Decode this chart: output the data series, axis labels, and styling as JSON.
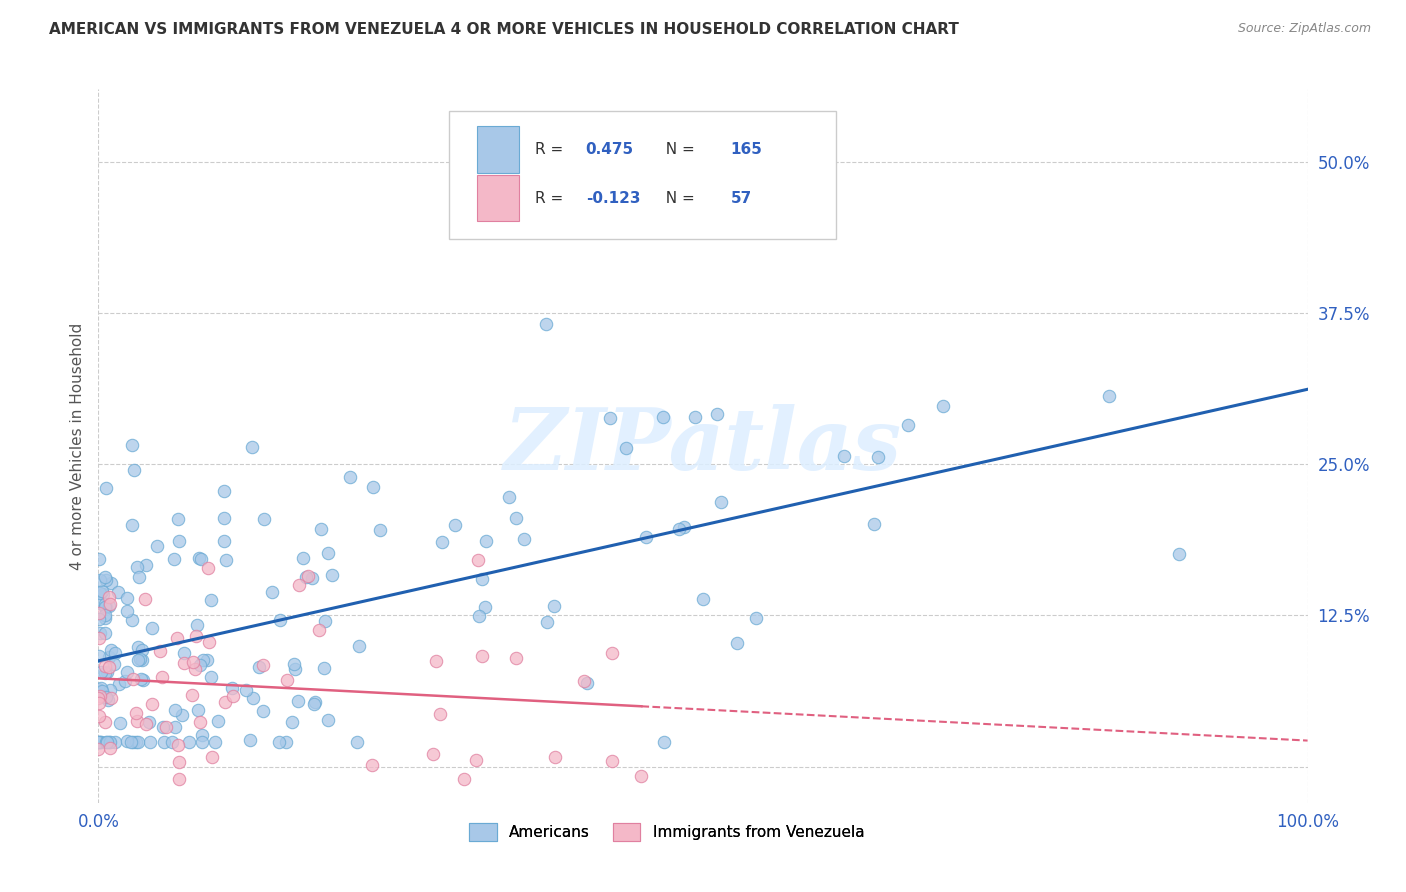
{
  "title": "AMERICAN VS IMMIGRANTS FROM VENEZUELA 4 OR MORE VEHICLES IN HOUSEHOLD CORRELATION CHART",
  "source": "Source: ZipAtlas.com",
  "ylabel": "4 or more Vehicles in Household",
  "xlim": [
    0.0,
    1.0
  ],
  "ylim": [
    -0.03,
    0.56
  ],
  "yticks": [
    0.0,
    0.125,
    0.25,
    0.375,
    0.5
  ],
  "ytick_labels": [
    "",
    "12.5%",
    "25.0%",
    "37.5%",
    "50.0%"
  ],
  "xtick_labels": [
    "0.0%",
    "100.0%"
  ],
  "r_american": 0.475,
  "n_american": 165,
  "r_venezuela": -0.123,
  "n_venezuela": 57,
  "blue_color": "#a8c8e8",
  "blue_edge": "#6aaad4",
  "pink_color": "#f4b8c8",
  "pink_edge": "#e080a0",
  "line_blue": "#2060b0",
  "line_pink": "#e06080",
  "tick_color": "#3060c0",
  "background": "#ffffff",
  "watermark": "ZIPatlas",
  "legend_label_american": "Americans",
  "legend_label_venezuela": "Immigrants from Venezuela",
  "grid_color": "#cccccc"
}
